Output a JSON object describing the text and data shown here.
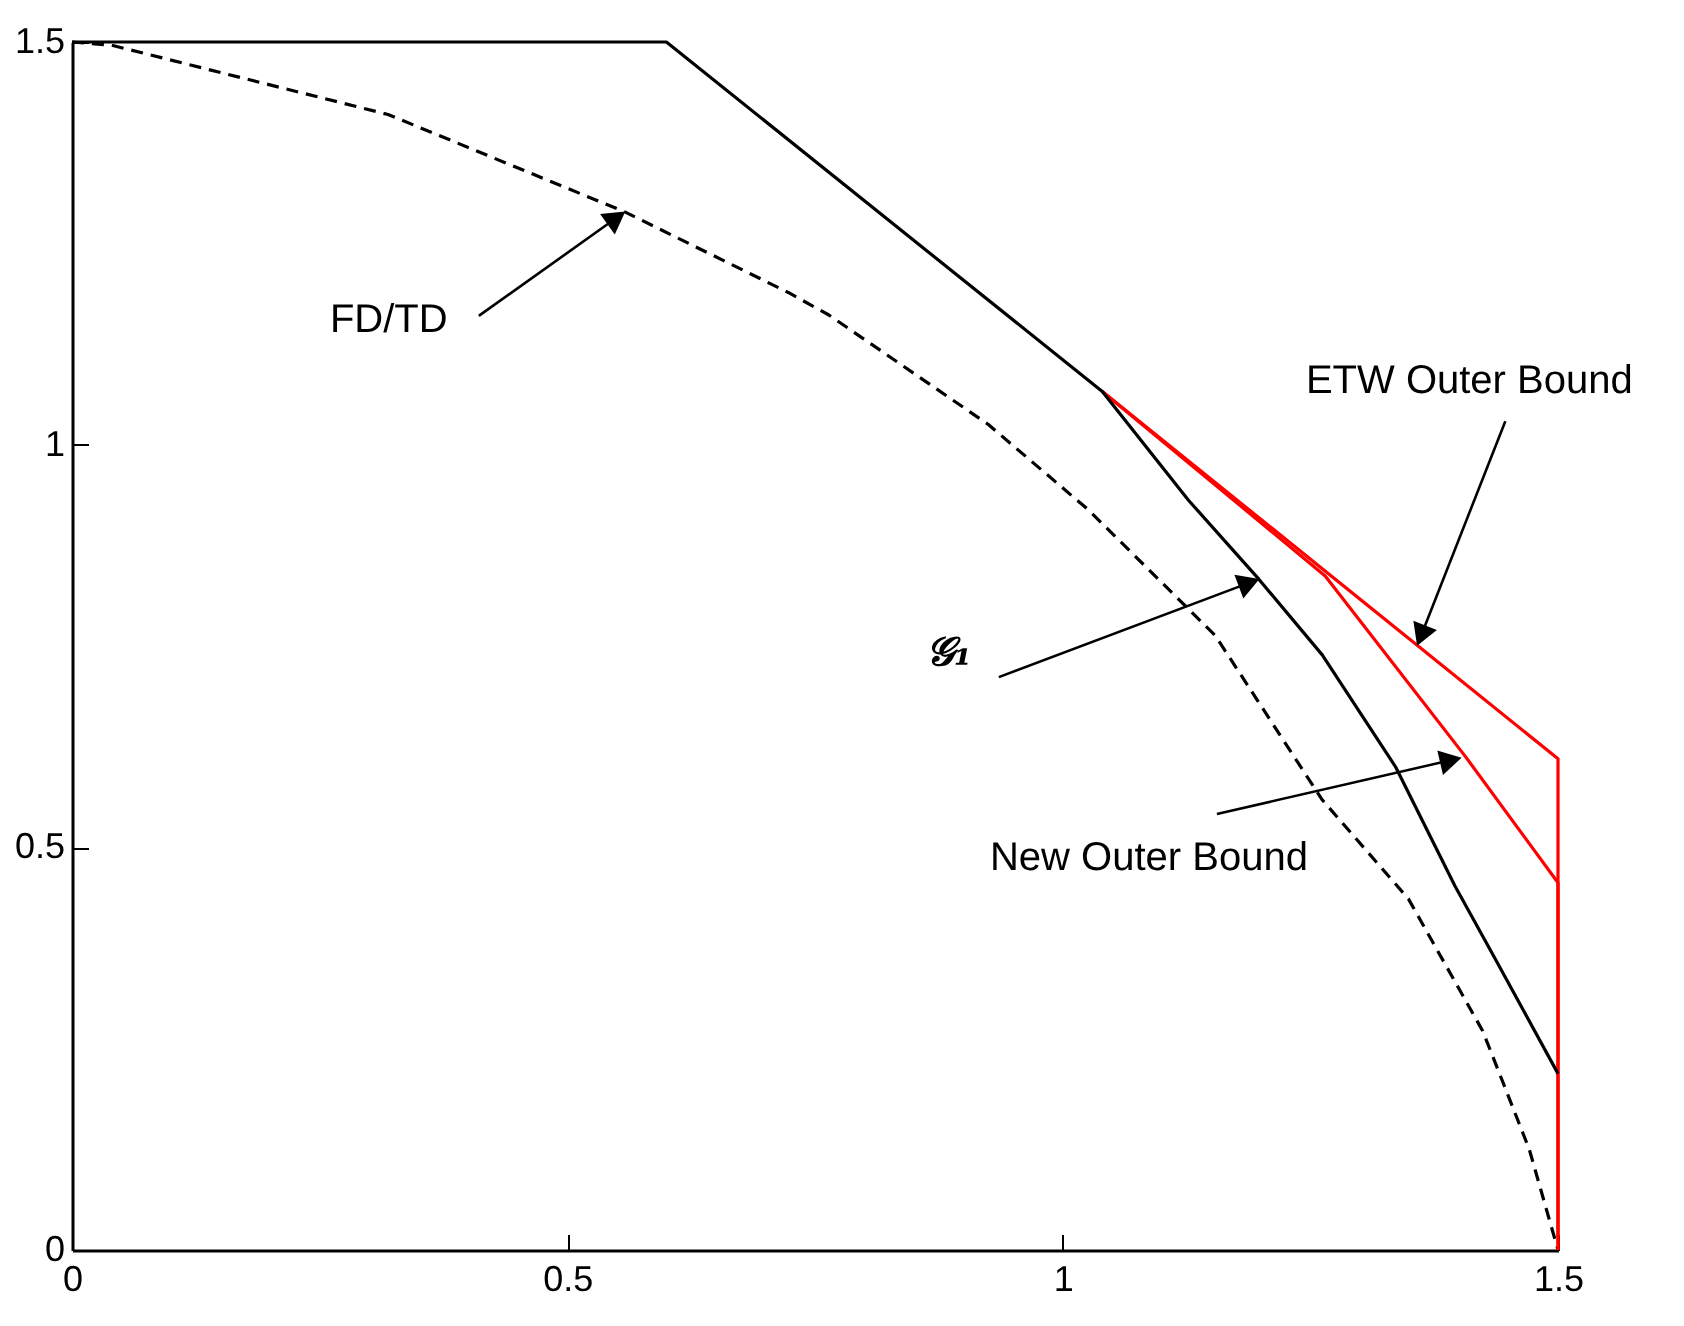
{
  "chart_data": {
    "type": "line",
    "xlim": [
      0,
      1.5
    ],
    "ylim": [
      0,
      1.5
    ],
    "xticks": [
      0,
      0.5,
      1,
      1.5
    ],
    "yticks": [
      0,
      0.5,
      1,
      1.5
    ],
    "grid": false,
    "marker": "none",
    "series": [
      {
        "color": "#000000",
        "line_style": "dashed",
        "x": [
          0,
          0.04,
          0.319,
          0.558,
          0.723,
          0.764,
          0.925,
          1.026,
          1.154,
          1.262,
          1.349,
          1.424,
          1.471,
          1.5
        ],
        "values": [
          1.5,
          1.496,
          1.41,
          1.289,
          1.189,
          1.161,
          1.025,
          0.919,
          0.763,
          0.559,
          0.436,
          0.272,
          0.125,
          0
        ]
      },
      {
        "color": "#ff0000",
        "line_style": "solid",
        "x": [
          1.04,
          1.265,
          1.407,
          1.5,
          1.5
        ],
        "values": [
          1.066,
          0.837,
          0.612,
          0.456,
          0
        ]
      },
      {
        "color": "#ff0000",
        "line_style": "solid",
        "x": [
          1.04,
          1.5,
          1.5
        ],
        "values": [
          1.066,
          0.61,
          0
        ]
      },
      {
        "color": "#000000",
        "line_style": "solid",
        "x": [
          0,
          0.6,
          1.04,
          1.127,
          1.198,
          1.262,
          1.336,
          1.396,
          1.436,
          1.5
        ],
        "values": [
          1.5,
          1.5,
          1.066,
          0.931,
          0.833,
          0.739,
          0.6,
          0.452,
          0.363,
          0.219
        ]
      }
    ],
    "annotations": [
      {
        "text": "FD/TD",
        "x": 0.558,
        "y": 1.289
      },
      {
        "text": "𝒢₁",
        "x": 1.198,
        "y": 0.833
      },
      {
        "text": "ETW Outer Bound",
        "x": 1.358,
        "y": 0.751
      },
      {
        "text": "New Outer Bound",
        "x": 1.402,
        "y": 0.611
      }
    ]
  }
}
